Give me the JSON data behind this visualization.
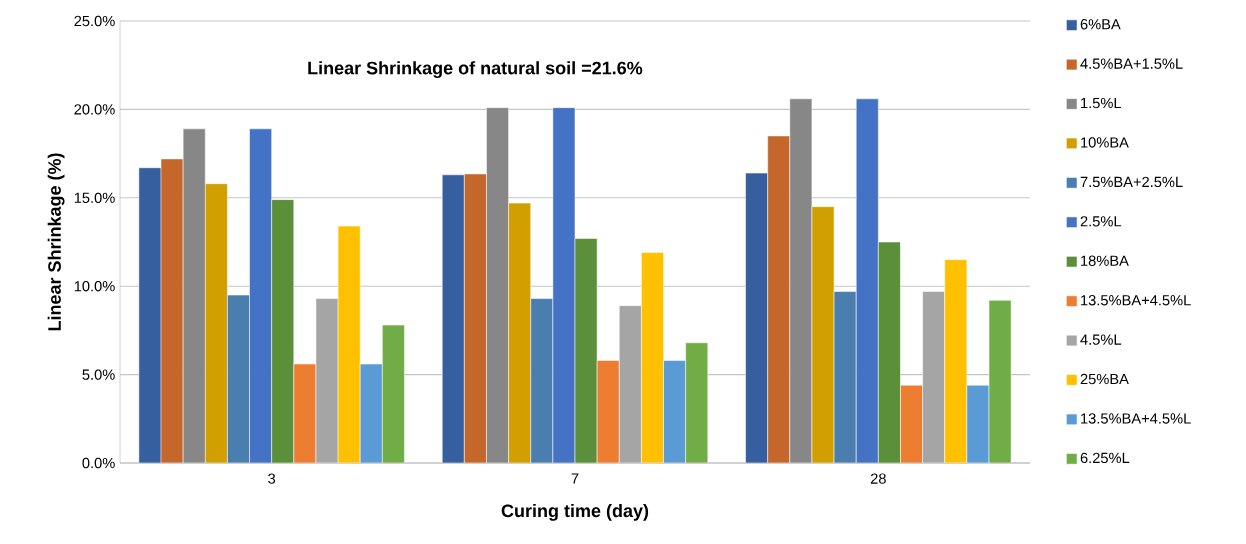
{
  "chart_data": {
    "type": "bar",
    "xlabel": "Curing time (day)",
    "ylabel": "Linear Shrinkage (%)",
    "annotations": [
      "Linear Shrinkage of natural soil =21.6%"
    ],
    "categories": [
      "3",
      "7",
      "28"
    ],
    "ylim": [
      0,
      25
    ],
    "yticks": [
      {
        "value": 0,
        "label": "0.0%"
      },
      {
        "value": 5,
        "label": "5.0%"
      },
      {
        "value": 10,
        "label": "10.0%"
      },
      {
        "value": 15,
        "label": "15.0%"
      },
      {
        "value": 20,
        "label": "20.0%"
      },
      {
        "value": 25,
        "label": "25.0%"
      }
    ],
    "grid": "y",
    "legend": "right",
    "series": [
      {
        "name": "6%BA",
        "color": "#365f9f",
        "values": [
          16.7,
          16.3,
          16.4
        ]
      },
      {
        "name": "4.5%BA+1.5%L",
        "color": "#c5662a",
        "values": [
          17.2,
          16.35,
          18.5
        ]
      },
      {
        "name": "1.5%L",
        "color": "#878787",
        "values": [
          18.9,
          20.1,
          20.6
        ]
      },
      {
        "name": "10%BA",
        "color": "#d29f00",
        "values": [
          15.8,
          14.7,
          14.5
        ]
      },
      {
        "name": "7.5%BA+2.5%L",
        "color": "#4a7eaf",
        "values": [
          9.5,
          9.3,
          9.7
        ]
      },
      {
        "name": "2.5%L",
        "color": "#4472c4",
        "values": [
          18.9,
          20.1,
          20.6
        ]
      },
      {
        "name": "18%BA",
        "color": "#5b8f3a",
        "values": [
          14.9,
          12.7,
          12.5
        ]
      },
      {
        "name": "13.5%BA+4.5%L",
        "color": "#ed7d31",
        "values": [
          5.6,
          5.8,
          4.4
        ]
      },
      {
        "name": "4.5%L",
        "color": "#a5a5a5",
        "values": [
          9.3,
          8.9,
          9.7
        ]
      },
      {
        "name": "25%BA",
        "color": "#ffc000",
        "values": [
          13.4,
          11.9,
          11.5
        ]
      },
      {
        "name": "13.5%BA+4.5%L",
        "color": "#5b9bd5",
        "values": [
          5.6,
          5.8,
          4.4
        ]
      },
      {
        "name": "6.25%L",
        "color": "#70ad47",
        "values": [
          7.8,
          6.8,
          9.2
        ]
      }
    ]
  }
}
